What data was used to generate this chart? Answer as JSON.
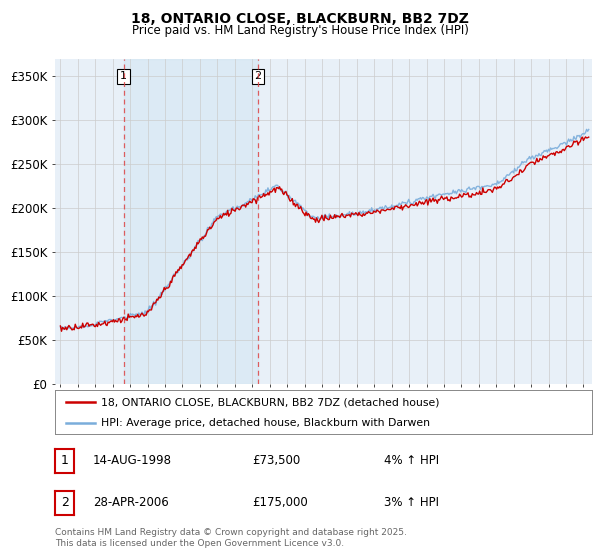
{
  "title1": "18, ONTARIO CLOSE, BLACKBURN, BB2 7DZ",
  "title2": "Price paid vs. HM Land Registry's House Price Index (HPI)",
  "ylabel_ticks": [
    "£0",
    "£50K",
    "£100K",
    "£150K",
    "£200K",
    "£250K",
    "£300K",
    "£350K"
  ],
  "ytick_values": [
    0,
    50000,
    100000,
    150000,
    200000,
    250000,
    300000,
    350000
  ],
  "ylim": [
    0,
    370000
  ],
  "xlim_start": 1994.7,
  "xlim_end": 2025.5,
  "sale1_x": 1998.62,
  "sale2_x": 2006.33,
  "legend_line1": "18, ONTARIO CLOSE, BLACKBURN, BB2 7DZ (detached house)",
  "legend_line2": "HPI: Average price, detached house, Blackburn with Darwen",
  "table_row1": [
    "1",
    "14-AUG-1998",
    "£73,500",
    "4% ↑ HPI"
  ],
  "table_row2": [
    "2",
    "28-APR-2006",
    "£175,000",
    "3% ↑ HPI"
  ],
  "footnote": "Contains HM Land Registry data © Crown copyright and database right 2025.\nThis data is licensed under the Open Government Licence v3.0.",
  "color_house": "#cc0000",
  "color_hpi": "#7aaddb",
  "color_grid": "#cccccc",
  "bg_color": "#ffffff",
  "plot_bg": "#e8f0f8",
  "shade_color": "#dce8f5",
  "dashed_color": "#dd4444"
}
